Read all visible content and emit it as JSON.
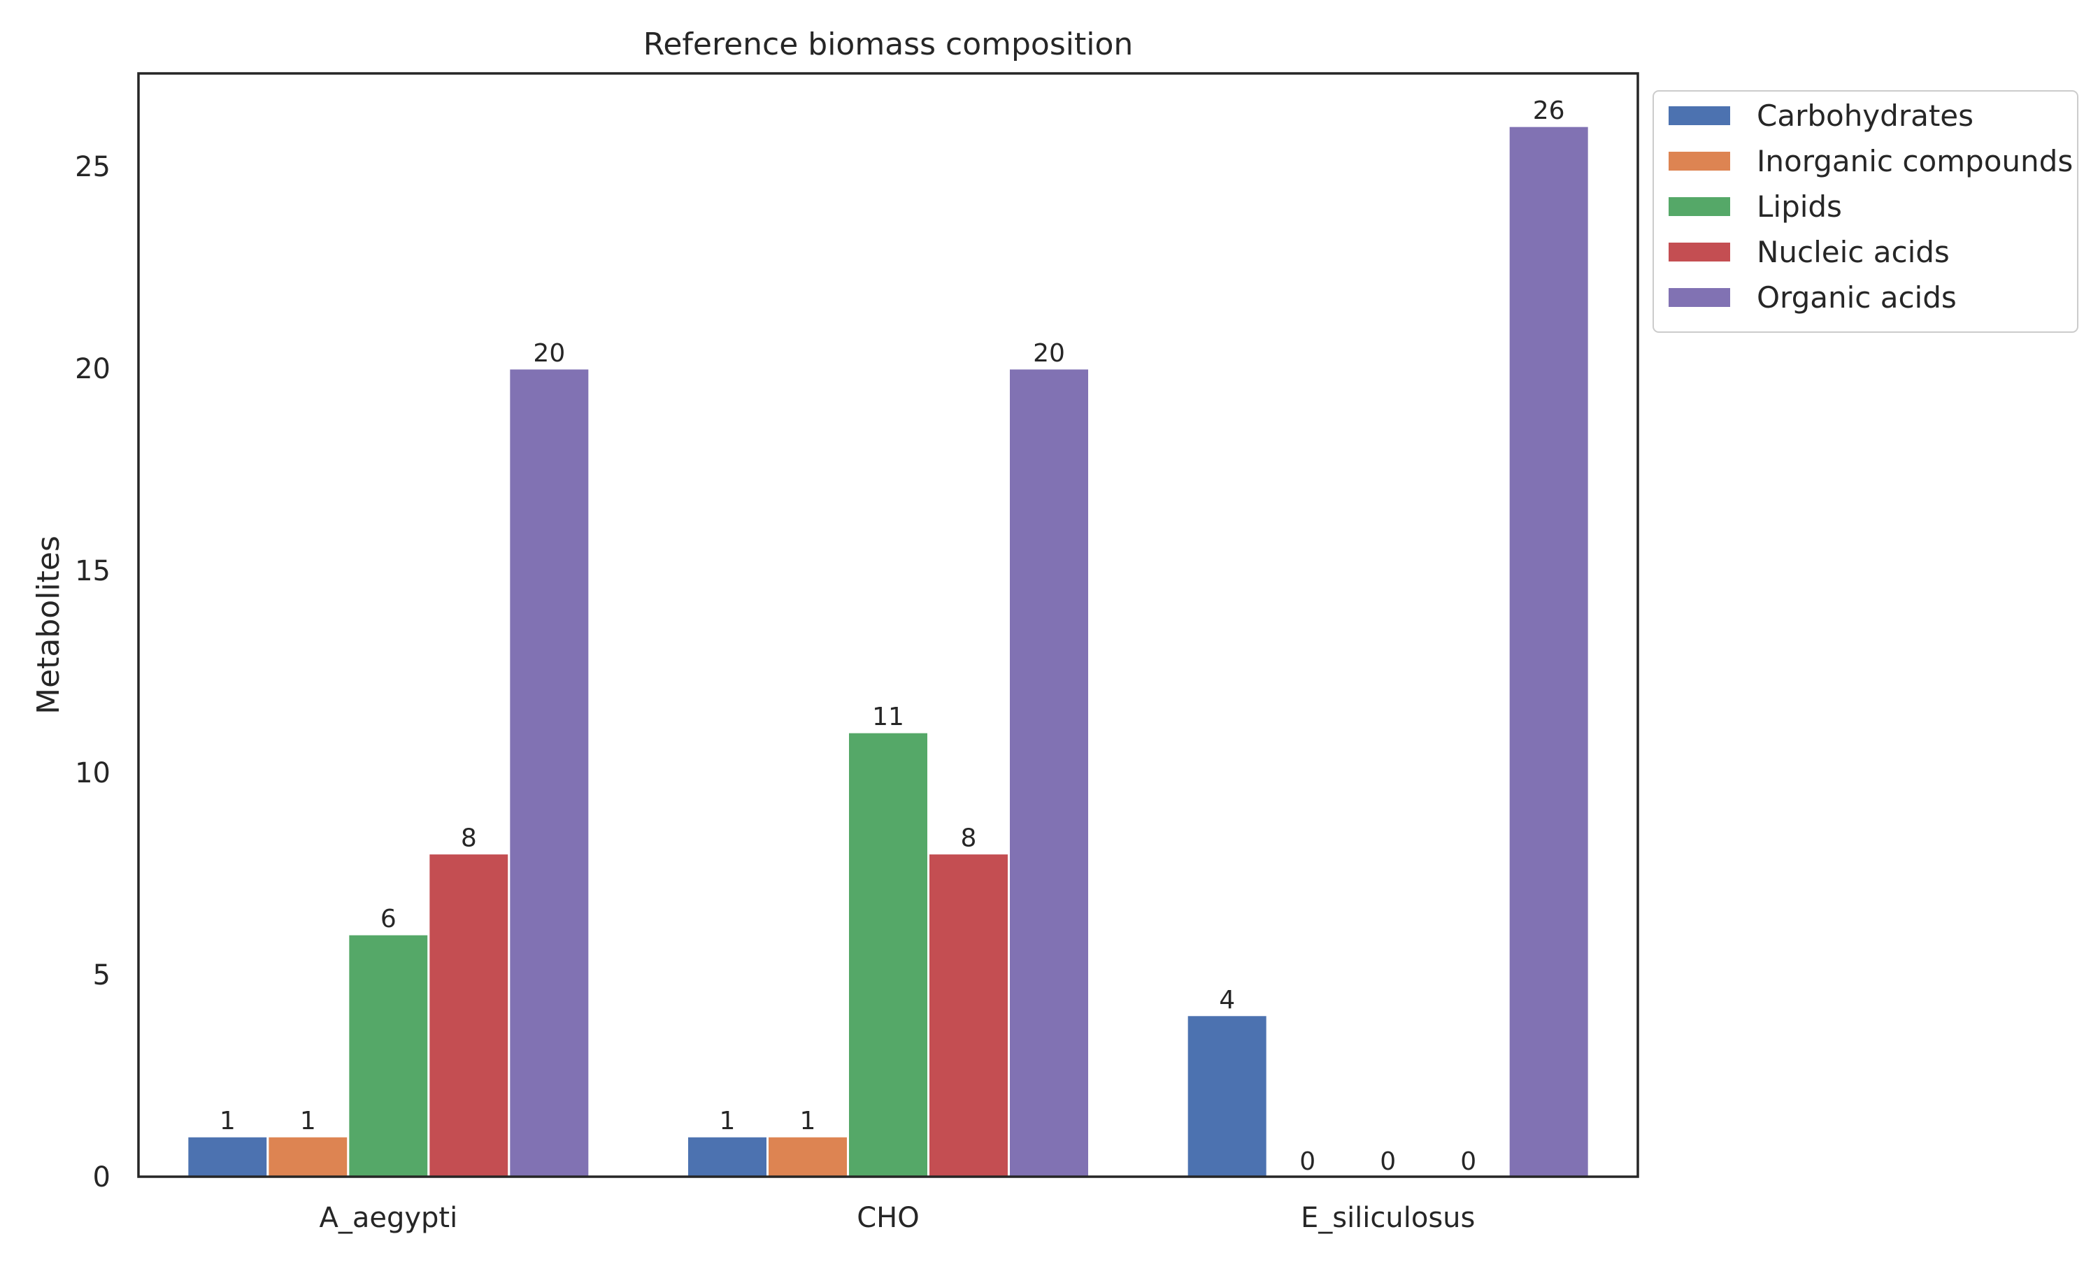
{
  "chart_data": {
    "type": "bar",
    "title": "Reference biomass composition",
    "xlabel": "",
    "ylabel": "Metabolites",
    "categories": [
      "A_aegypti",
      "CHO",
      "E_siliculosus"
    ],
    "series": [
      {
        "name": "Carbohydrates",
        "color": "#4c72b0",
        "values": [
          1,
          1,
          4
        ]
      },
      {
        "name": "Inorganic compounds",
        "color": "#dd8452",
        "values": [
          1,
          1,
          0
        ]
      },
      {
        "name": "Lipids",
        "color": "#55a868",
        "values": [
          6,
          11,
          0
        ]
      },
      {
        "name": "Nucleic acids",
        "color": "#c44e52",
        "values": [
          8,
          8,
          0
        ]
      },
      {
        "name": "Organic acids",
        "color": "#8172b3",
        "values": [
          20,
          20,
          26
        ]
      }
    ],
    "ylim": [
      0,
      27.3
    ],
    "yticks": [
      0,
      5,
      10,
      15,
      20,
      25
    ],
    "grid": false,
    "legend_position": "outside-right-top"
  }
}
